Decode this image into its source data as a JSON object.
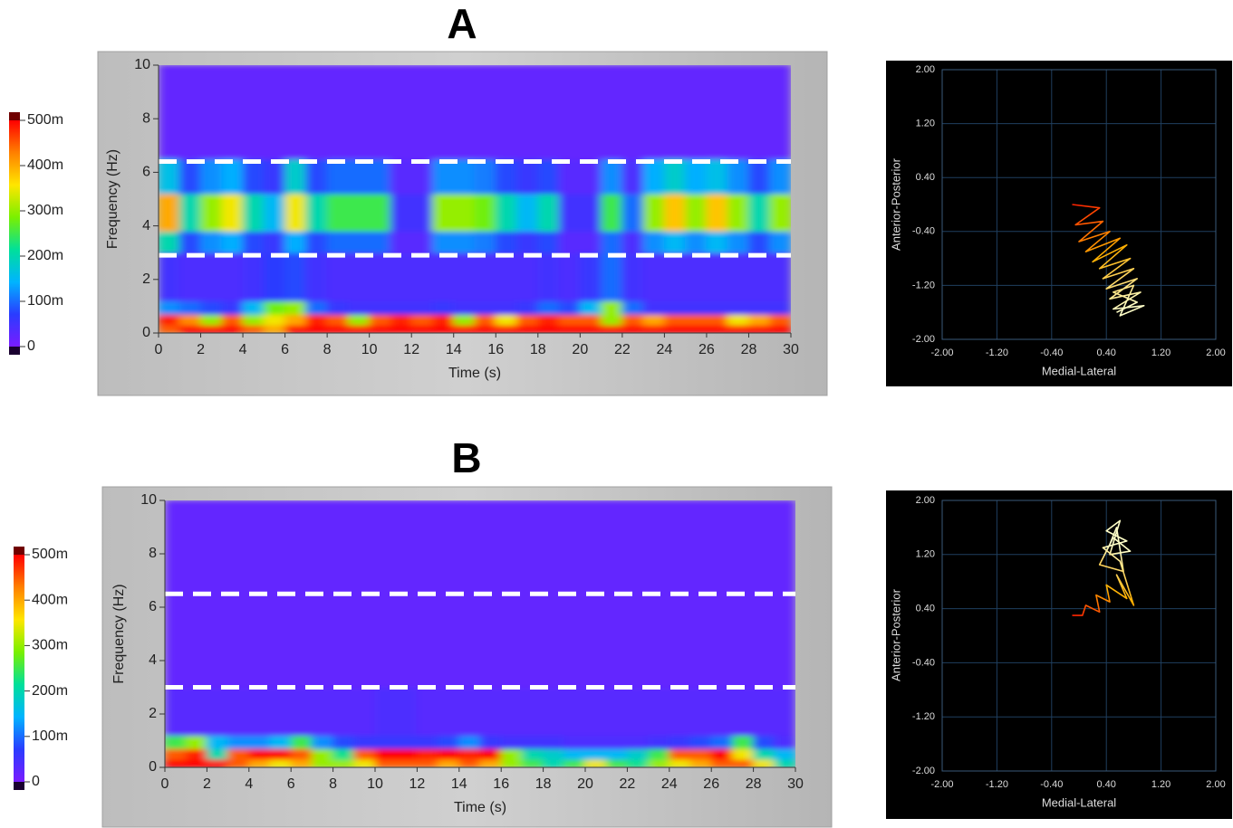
{
  "chart_data": [
    {
      "type": "heatmap",
      "title": "A",
      "x_label": "Time (s)",
      "y_label": "Frequency (Hz)",
      "xlim": [
        0,
        30
      ],
      "xticks": [
        0,
        2,
        4,
        6,
        8,
        10,
        12,
        14,
        16,
        18,
        20,
        22,
        24,
        26,
        28,
        30
      ],
      "ylim": [
        0,
        10
      ],
      "yticks": [
        0,
        2,
        4,
        6,
        8,
        10
      ],
      "x_bins": [
        0,
        1,
        2,
        3,
        4,
        5,
        6,
        7,
        8,
        9,
        10,
        11,
        12,
        13,
        14,
        15,
        16,
        17,
        18,
        19,
        20,
        21,
        22,
        23,
        24,
        25,
        26,
        27,
        28,
        29,
        30
      ],
      "y_bins": [
        0,
        0.3,
        0.7,
        1.2,
        3,
        3.8,
        5.2,
        6.5,
        10
      ],
      "z": [
        [
          0.45,
          0.5,
          0.5,
          0.5,
          0.45,
          0.4,
          0.5,
          0.5,
          0.5,
          0.5,
          0.5,
          0.5,
          0.5,
          0.5,
          0.5,
          0.5,
          0.5,
          0.5,
          0.5,
          0.5,
          0.5,
          0.5,
          0.5,
          0.5,
          0.5,
          0.5,
          0.5,
          0.5,
          0.5,
          0.5
        ],
        [
          0.48,
          0.42,
          0.3,
          0.45,
          0.3,
          0.35,
          0.4,
          0.48,
          0.45,
          0.3,
          0.45,
          0.48,
          0.45,
          0.48,
          0.3,
          0.45,
          0.35,
          0.45,
          0.48,
          0.45,
          0.45,
          0.3,
          0.45,
          0.4,
          0.45,
          0.45,
          0.45,
          0.35,
          0.4,
          0.45
        ],
        [
          0.12,
          0.1,
          0.08,
          0.06,
          0.15,
          0.28,
          0.3,
          0.1,
          0.06,
          0.05,
          0.05,
          0.05,
          0.05,
          0.06,
          0.05,
          0.05,
          0.05,
          0.06,
          0.1,
          0.08,
          0.15,
          0.3,
          0.1,
          0.05,
          0.05,
          0.05,
          0.05,
          0.05,
          0.05,
          0.05
        ],
        [
          0.05,
          0.04,
          0.04,
          0.04,
          0.05,
          0.07,
          0.08,
          0.05,
          0.04,
          0.04,
          0.04,
          0.04,
          0.04,
          0.04,
          0.04,
          0.04,
          0.04,
          0.04,
          0.05,
          0.04,
          0.06,
          0.1,
          0.05,
          0.04,
          0.04,
          0.04,
          0.04,
          0.04,
          0.04,
          0.04
        ],
        [
          0.2,
          0.08,
          0.12,
          0.14,
          0.08,
          0.06,
          0.14,
          0.08,
          0.1,
          0.1,
          0.1,
          0.03,
          0.03,
          0.12,
          0.12,
          0.11,
          0.08,
          0.06,
          0.08,
          0.03,
          0.03,
          0.1,
          0.04,
          0.12,
          0.15,
          0.12,
          0.15,
          0.12,
          0.08,
          0.12
        ],
        [
          0.4,
          0.2,
          0.3,
          0.35,
          0.2,
          0.15,
          0.35,
          0.2,
          0.25,
          0.25,
          0.25,
          0.05,
          0.05,
          0.3,
          0.3,
          0.28,
          0.2,
          0.15,
          0.2,
          0.05,
          0.05,
          0.25,
          0.1,
          0.3,
          0.38,
          0.3,
          0.38,
          0.3,
          0.2,
          0.3
        ],
        [
          0.16,
          0.08,
          0.12,
          0.14,
          0.08,
          0.06,
          0.18,
          0.08,
          0.1,
          0.1,
          0.1,
          0.03,
          0.03,
          0.12,
          0.12,
          0.11,
          0.08,
          0.06,
          0.08,
          0.03,
          0.03,
          0.12,
          0.04,
          0.14,
          0.18,
          0.14,
          0.16,
          0.12,
          0.08,
          0.12
        ],
        [
          0.02,
          0.02,
          0.02,
          0.02,
          0.02,
          0.02,
          0.02,
          0.02,
          0.02,
          0.02,
          0.02,
          0.02,
          0.02,
          0.02,
          0.02,
          0.02,
          0.02,
          0.02,
          0.02,
          0.02,
          0.02,
          0.02,
          0.02,
          0.02,
          0.02,
          0.02,
          0.02,
          0.02,
          0.02,
          0.02
        ]
      ],
      "clim": [
        0,
        0.5
      ],
      "cticks": [
        0,
        {
          "value": 0.1,
          "label": "100m"
        },
        {
          "value": 0.2,
          "label": "200m"
        },
        {
          "value": 0.3,
          "label": "300m"
        },
        {
          "value": 0.4,
          "label": "400m"
        },
        {
          "value": 0.5,
          "label": "500m"
        }
      ],
      "colormap": [
        "#7a1cff",
        "#2a3cff",
        "#00b4ff",
        "#00e09a",
        "#7af000",
        "#ffe600",
        "#ff8000",
        "#ff0000"
      ],
      "hlines": [
        6.4,
        2.9
      ],
      "hline_color": "#ffffff"
    },
    {
      "type": "line",
      "x_label": "Medial-Lateral",
      "y_label": "Anterior-Posterior",
      "xlim": [
        -2,
        2
      ],
      "ylim": [
        -2,
        2
      ],
      "grid": true,
      "xticks": [
        {
          "value": -2,
          "label": "-2.00"
        },
        {
          "value": -1.2,
          "label": "-1.20"
        },
        {
          "value": -0.4,
          "label": "-0.40"
        },
        {
          "value": 0.4,
          "label": "0.40"
        },
        {
          "value": 1.2,
          "label": "1.20"
        },
        {
          "value": 2,
          "label": "2.00"
        }
      ],
      "yticks": [
        {
          "value": -2,
          "label": "-2.00"
        },
        {
          "value": -1.2,
          "label": "-1.20"
        },
        {
          "value": -0.4,
          "label": "-0.40"
        },
        {
          "value": 0.4,
          "label": "0.40"
        },
        {
          "value": 1.2,
          "label": "1.20"
        },
        {
          "value": 2,
          "label": "2.00"
        }
      ],
      "x": [
        -0.1,
        0.3,
        -0.05,
        0.35,
        0.0,
        0.45,
        0.1,
        0.6,
        0.2,
        0.7,
        0.3,
        0.75,
        0.35,
        0.8,
        0.4,
        0.85,
        0.45,
        0.9,
        0.5,
        0.95,
        0.6,
        0.8,
        0.5,
        0.85,
        0.55
      ],
      "y": [
        0.0,
        -0.05,
        -0.3,
        -0.25,
        -0.55,
        -0.4,
        -0.7,
        -0.5,
        -0.85,
        -0.6,
        -0.95,
        -0.8,
        -1.1,
        -0.95,
        -1.25,
        -1.1,
        -1.4,
        -1.3,
        -1.55,
        -1.5,
        -1.65,
        -1.2,
        -1.3,
        -1.45,
        -1.6
      ],
      "colors": [
        "#ff2000",
        "#ffb000",
        "#ffffc8"
      ]
    },
    {
      "type": "heatmap",
      "title": "B",
      "x_label": "Time (s)",
      "y_label": "Frequency (Hz)",
      "xlim": [
        0,
        30
      ],
      "xticks": [
        0,
        2,
        4,
        6,
        8,
        10,
        12,
        14,
        16,
        18,
        20,
        22,
        24,
        26,
        28,
        30
      ],
      "ylim": [
        0,
        10
      ],
      "yticks": [
        0,
        2,
        4,
        6,
        8,
        10
      ],
      "x_bins": [
        0,
        1,
        2,
        3,
        4,
        5,
        6,
        7,
        8,
        9,
        10,
        11,
        12,
        13,
        14,
        15,
        16,
        17,
        18,
        19,
        20,
        21,
        22,
        23,
        24,
        25,
        26,
        27,
        28,
        29,
        30
      ],
      "y_bins": [
        0,
        0.3,
        0.7,
        1.2,
        3,
        3.8,
        5.2,
        6.5,
        10
      ],
      "z": [
        [
          0.5,
          0.5,
          0.5,
          0.45,
          0.4,
          0.35,
          0.4,
          0.3,
          0.3,
          0.35,
          0.45,
          0.45,
          0.45,
          0.4,
          0.45,
          0.4,
          0.3,
          0.25,
          0.2,
          0.25,
          0.35,
          0.25,
          0.22,
          0.3,
          0.35,
          0.4,
          0.45,
          0.45,
          0.35,
          0.2
        ],
        [
          0.45,
          0.48,
          0.2,
          0.45,
          0.5,
          0.5,
          0.45,
          0.3,
          0.22,
          0.45,
          0.5,
          0.5,
          0.48,
          0.5,
          0.48,
          0.5,
          0.3,
          0.2,
          0.18,
          0.15,
          0.15,
          0.15,
          0.18,
          0.25,
          0.45,
          0.45,
          0.5,
          0.35,
          0.2,
          0.15
        ],
        [
          0.25,
          0.3,
          0.15,
          0.12,
          0.12,
          0.15,
          0.25,
          0.12,
          0.08,
          0.06,
          0.06,
          0.06,
          0.06,
          0.08,
          0.12,
          0.06,
          0.05,
          0.05,
          0.05,
          0.04,
          0.04,
          0.04,
          0.04,
          0.05,
          0.06,
          0.08,
          0.1,
          0.25,
          0.08,
          0.04
        ],
        [
          0.03,
          0.03,
          0.03,
          0.03,
          0.03,
          0.03,
          0.03,
          0.03,
          0.03,
          0.03,
          0.04,
          0.04,
          0.03,
          0.03,
          0.03,
          0.03,
          0.03,
          0.03,
          0.03,
          0.03,
          0.03,
          0.03,
          0.03,
          0.03,
          0.03,
          0.03,
          0.03,
          0.03,
          0.03,
          0.03
        ],
        [
          0.02,
          0.02,
          0.02,
          0.02,
          0.02,
          0.02,
          0.02,
          0.02,
          0.02,
          0.02,
          0.02,
          0.02,
          0.02,
          0.02,
          0.02,
          0.02,
          0.02,
          0.02,
          0.02,
          0.02,
          0.02,
          0.02,
          0.02,
          0.02,
          0.02,
          0.02,
          0.02,
          0.02,
          0.02,
          0.02
        ],
        [
          0.02,
          0.02,
          0.02,
          0.02,
          0.02,
          0.02,
          0.02,
          0.02,
          0.02,
          0.02,
          0.02,
          0.02,
          0.02,
          0.02,
          0.02,
          0.02,
          0.02,
          0.02,
          0.02,
          0.02,
          0.02,
          0.02,
          0.02,
          0.02,
          0.02,
          0.02,
          0.02,
          0.02,
          0.02,
          0.02
        ],
        [
          0.02,
          0.02,
          0.02,
          0.02,
          0.02,
          0.02,
          0.02,
          0.02,
          0.02,
          0.02,
          0.02,
          0.02,
          0.02,
          0.02,
          0.02,
          0.02,
          0.02,
          0.02,
          0.02,
          0.02,
          0.02,
          0.02,
          0.02,
          0.02,
          0.02,
          0.02,
          0.02,
          0.02,
          0.02,
          0.02
        ],
        [
          0.02,
          0.02,
          0.02,
          0.02,
          0.02,
          0.02,
          0.02,
          0.02,
          0.02,
          0.02,
          0.02,
          0.02,
          0.02,
          0.02,
          0.02,
          0.02,
          0.02,
          0.02,
          0.02,
          0.02,
          0.02,
          0.02,
          0.02,
          0.02,
          0.02,
          0.02,
          0.02,
          0.02,
          0.02,
          0.02
        ]
      ],
      "clim": [
        0,
        0.5
      ],
      "cticks": [
        0,
        {
          "value": 0.1,
          "label": "100m"
        },
        {
          "value": 0.2,
          "label": "200m"
        },
        {
          "value": 0.3,
          "label": "300m"
        },
        {
          "value": 0.4,
          "label": "400m"
        },
        {
          "value": 0.5,
          "label": "500m"
        }
      ],
      "colormap": [
        "#7a1cff",
        "#2a3cff",
        "#00b4ff",
        "#00e09a",
        "#7af000",
        "#ffe600",
        "#ff8000",
        "#ff0000"
      ],
      "hlines": [
        6.5,
        3.0
      ],
      "hline_color": "#ffffff"
    },
    {
      "type": "line",
      "x_label": "Medial-Lateral",
      "y_label": "Anterior-Posterior",
      "xlim": [
        -2,
        2
      ],
      "ylim": [
        -2,
        2
      ],
      "grid": true,
      "xticks": [
        {
          "value": -2,
          "label": "-2.00"
        },
        {
          "value": -1.2,
          "label": "-1.20"
        },
        {
          "value": -0.4,
          "label": "-0.40"
        },
        {
          "value": 0.4,
          "label": "0.40"
        },
        {
          "value": 1.2,
          "label": "1.20"
        },
        {
          "value": 2,
          "label": "2.00"
        }
      ],
      "yticks": [
        {
          "value": -2,
          "label": "-2.00"
        },
        {
          "value": -1.2,
          "label": "-1.20"
        },
        {
          "value": -0.4,
          "label": "-0.40"
        },
        {
          "value": 0.4,
          "label": "0.40"
        },
        {
          "value": 1.2,
          "label": "1.20"
        },
        {
          "value": 2,
          "label": "2.00"
        }
      ],
      "x": [
        -0.1,
        0.05,
        0.1,
        0.3,
        0.25,
        0.45,
        0.4,
        0.7,
        0.55,
        0.8,
        0.6,
        0.35,
        0.7,
        0.4,
        0.6,
        0.45,
        0.75,
        0.5,
        0.3,
        0.65,
        0.55,
        0.45
      ],
      "y": [
        0.3,
        0.3,
        0.45,
        0.35,
        0.6,
        0.5,
        0.75,
        0.55,
        0.9,
        0.45,
        1.1,
        1.3,
        1.4,
        1.55,
        1.7,
        1.2,
        1.25,
        1.45,
        1.05,
        0.95,
        1.6,
        1.35
      ],
      "colors": [
        "#ff2000",
        "#ffb000",
        "#ffffc8"
      ]
    }
  ]
}
